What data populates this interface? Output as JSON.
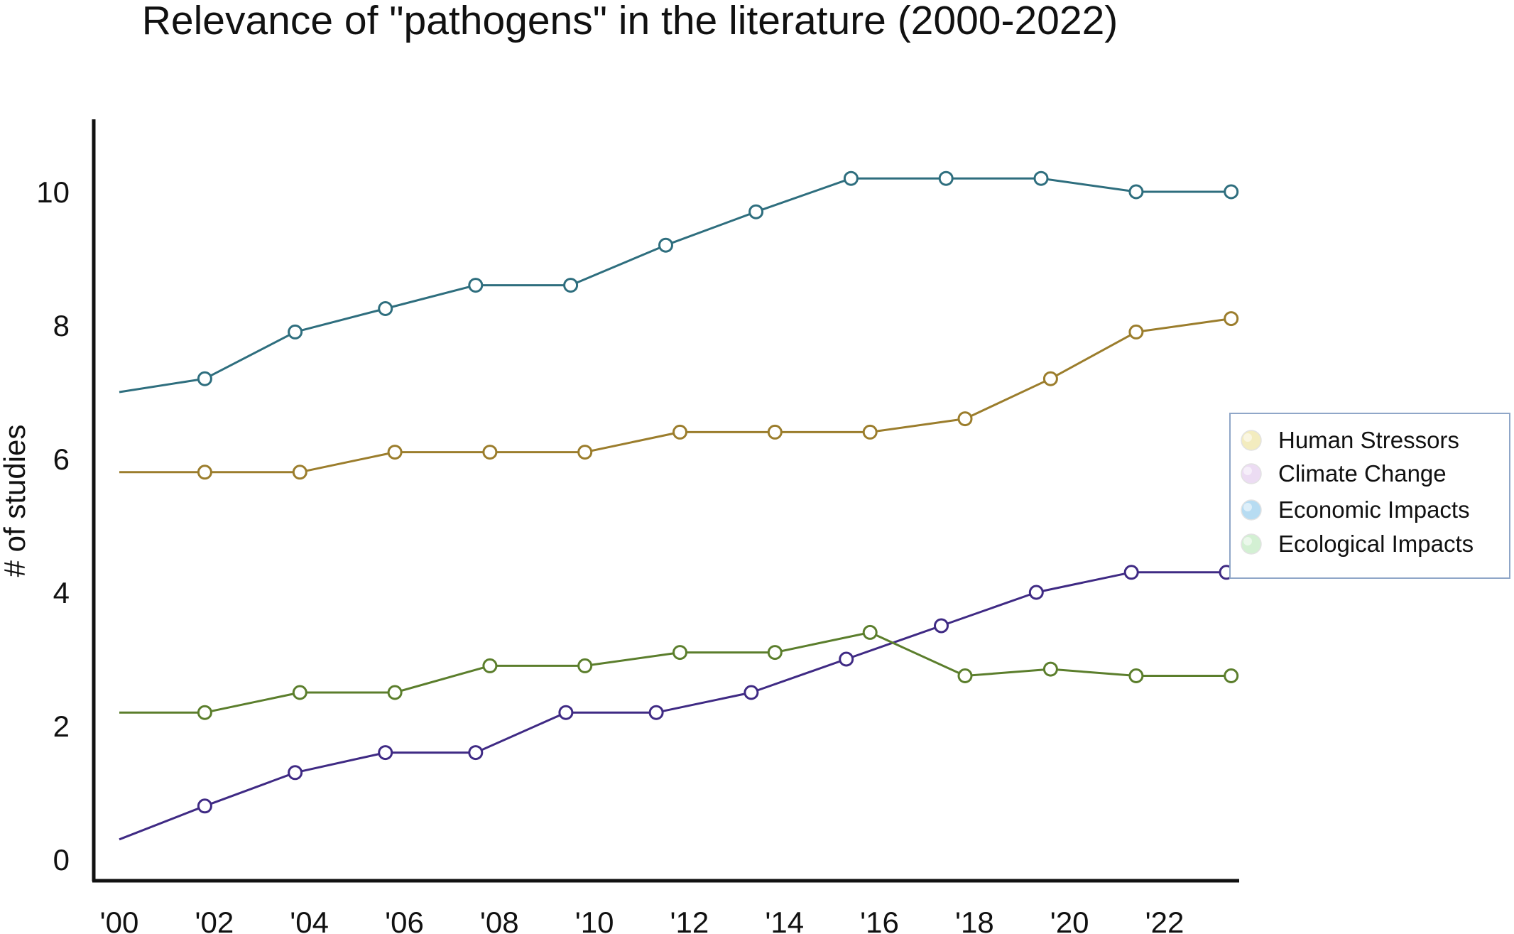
{
  "chart_data": {
    "type": "line",
    "title": "Relevance of \"pathogens\" in the literature (2000-2022)",
    "xlabel": "",
    "ylabel": "# of studies",
    "xlim": [
      2000,
      2022
    ],
    "ylim": [
      0,
      11
    ],
    "x_ticks": [
      {
        "value": 2000,
        "label": "'00"
      },
      {
        "value": 2002,
        "label": "'02"
      },
      {
        "value": 2004,
        "label": "'04"
      },
      {
        "value": 2006,
        "label": "'06"
      },
      {
        "value": 2008,
        "label": "'08"
      },
      {
        "value": 2010,
        "label": "'10"
      },
      {
        "value": 2012,
        "label": "'12"
      },
      {
        "value": 2014,
        "label": "'14"
      },
      {
        "value": 2016,
        "label": "'16"
      },
      {
        "value": 2018,
        "label": "'18"
      },
      {
        "value": 2020,
        "label": "'20"
      },
      {
        "value": 2022,
        "label": "'22"
      }
    ],
    "y_ticks": [
      0,
      2,
      4,
      6,
      8,
      10
    ],
    "grid": false,
    "legend_position": "right",
    "legend": [
      {
        "name": "Human Stressors",
        "color": "#f3ecbf"
      },
      {
        "name": "Climate Change",
        "color": "#ecdcf3"
      },
      {
        "name": "Economic Impacts",
        "color": "#b7dcf2"
      },
      {
        "name": "Ecological Impacts",
        "color": "#d3f0d3"
      }
    ],
    "series": [
      {
        "color": "#2e6e7e",
        "start": {
          "x": 2000,
          "y": 7.0
        },
        "x": [
          2001.8,
          2003.7,
          2005.6,
          2007.5,
          2009.5,
          2011.5,
          2013.4,
          2015.4,
          2017.4,
          2019.4,
          2021.4,
          2023.4
        ],
        "y": [
          7.2,
          7.9,
          8.25,
          8.6,
          8.6,
          9.2,
          9.7,
          10.2,
          10.2,
          10.2,
          10.0,
          10.0
        ]
      },
      {
        "color": "#9b7d2c",
        "start": {
          "x": 2000,
          "y": 5.8
        },
        "x": [
          2001.8,
          2003.8,
          2005.8,
          2007.8,
          2009.8,
          2011.8,
          2013.8,
          2015.8,
          2017.8,
          2019.6,
          2021.4,
          2023.4
        ],
        "y": [
          5.8,
          5.8,
          6.1,
          6.1,
          6.1,
          6.4,
          6.4,
          6.4,
          6.6,
          7.2,
          7.9,
          8.1
        ]
      },
      {
        "color": "#3f2a84",
        "start": {
          "x": 2000,
          "y": 0.3
        },
        "x": [
          2001.8,
          2003.7,
          2005.6,
          2007.5,
          2009.4,
          2011.3,
          2013.3,
          2015.3,
          2017.3,
          2019.3,
          2021.3,
          2023.3
        ],
        "y": [
          0.8,
          1.3,
          1.6,
          1.6,
          2.2,
          2.2,
          2.5,
          3.0,
          3.5,
          4.0,
          4.3,
          4.3
        ]
      },
      {
        "color": "#5b7e2c",
        "start": {
          "x": 2000,
          "y": 2.2
        },
        "x": [
          2001.8,
          2003.8,
          2005.8,
          2007.8,
          2009.8,
          2011.8,
          2013.8,
          2015.8,
          2017.8,
          2019.6,
          2021.4,
          2023.4
        ],
        "y": [
          2.2,
          2.5,
          2.5,
          2.9,
          2.9,
          3.1,
          3.1,
          3.4,
          2.75,
          2.85,
          2.75,
          2.75
        ]
      }
    ]
  }
}
